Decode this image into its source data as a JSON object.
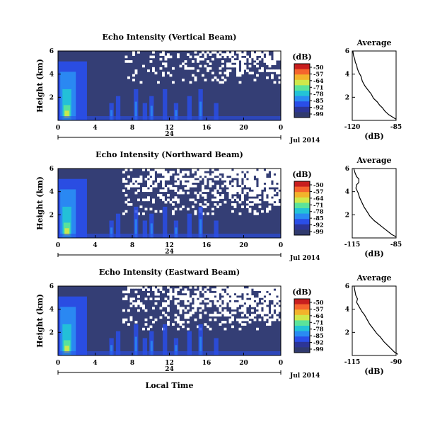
{
  "chart_data": [
    {
      "type": "heatmap",
      "title": "Echo Intensity (Vertical Beam)",
      "ylabel": "Height (km)",
      "ylim": [
        0,
        6
      ],
      "yticks": [
        "2",
        "4",
        "6"
      ],
      "xticks": [
        "0",
        "4",
        "8",
        "12",
        "16",
        "20",
        "0"
      ],
      "date_day": "24",
      "date_label": "Jul 2014",
      "colorbar": {
        "unit": "(dB)",
        "ticks": [
          "-50",
          "-57",
          "-64",
          "-71",
          "-78",
          "-85",
          "-92",
          "-99"
        ]
      },
      "average": {
        "title": "Average",
        "xlabel": "(dB)",
        "xticks": [
          "-120",
          "-85"
        ],
        "xlim": [
          -120,
          -85
        ],
        "yticks": [
          "2",
          "4",
          "6"
        ],
        "ylim": [
          0,
          6
        ],
        "profile": [
          [
            -85,
            0.1
          ],
          [
            -88,
            0.3
          ],
          [
            -91,
            0.5
          ],
          [
            -94,
            0.8
          ],
          [
            -96,
            1.1
          ],
          [
            -98,
            1.3
          ],
          [
            -100,
            1.6
          ],
          [
            -103,
            1.9
          ],
          [
            -105,
            2.3
          ],
          [
            -108,
            2.7
          ],
          [
            -110,
            3.0
          ],
          [
            -112,
            3.4
          ],
          [
            -113,
            3.8
          ],
          [
            -115,
            4.2
          ],
          [
            -116,
            4.5
          ],
          [
            -116.5,
            4.8
          ],
          [
            -117.5,
            5.0
          ],
          [
            -118,
            5.3
          ],
          [
            -119,
            5.6
          ],
          [
            -119.5,
            6.0
          ]
        ]
      }
    },
    {
      "type": "heatmap",
      "title": "Echo Intensity (Northward Beam)",
      "ylabel": "Height (km)",
      "ylim": [
        0,
        6
      ],
      "yticks": [
        "2",
        "4",
        "6"
      ],
      "xticks": [
        "0",
        "4",
        "8",
        "12",
        "16",
        "20",
        "0"
      ],
      "date_day": "24",
      "date_label": "Jul 2014",
      "colorbar": {
        "unit": "(dB)",
        "ticks": [
          "-50",
          "-57",
          "-64",
          "-71",
          "-78",
          "-85",
          "-92",
          "-99"
        ]
      },
      "average": {
        "title": "Average",
        "xlabel": "(dB)",
        "xticks": [
          "-115",
          "-85"
        ],
        "xlim": [
          -115,
          -85
        ],
        "yticks": [
          "2",
          "4",
          "6"
        ],
        "ylim": [
          0,
          6
        ],
        "profile": [
          [
            -85,
            0.1
          ],
          [
            -88,
            0.3
          ],
          [
            -91,
            0.6
          ],
          [
            -94,
            0.9
          ],
          [
            -97,
            1.2
          ],
          [
            -100,
            1.5
          ],
          [
            -103,
            1.9
          ],
          [
            -105,
            2.3
          ],
          [
            -107,
            2.7
          ],
          [
            -108.5,
            3.1
          ],
          [
            -110,
            3.5
          ],
          [
            -111,
            3.9
          ],
          [
            -112.5,
            4.3
          ],
          [
            -112,
            4.6
          ],
          [
            -110.5,
            4.8
          ],
          [
            -110.5,
            5.1
          ],
          [
            -112,
            5.3
          ],
          [
            -113,
            5.6
          ],
          [
            -114,
            6.0
          ]
        ]
      }
    },
    {
      "type": "heatmap",
      "title": "Echo Intensity (Eastward Beam)",
      "ylabel": "Height (km)",
      "ylim": [
        0,
        6
      ],
      "yticks": [
        "2",
        "4",
        "6"
      ],
      "xticks": [
        "0",
        "4",
        "8",
        "12",
        "16",
        "20",
        "0"
      ],
      "date_day": "24",
      "date_label": "Jul 2014",
      "xlabel": "Local Time",
      "colorbar": {
        "unit": "(dB)",
        "ticks": [
          "-50",
          "-57",
          "-64",
          "-71",
          "-78",
          "-85",
          "-92",
          "-99"
        ]
      },
      "average": {
        "title": "Average",
        "xlabel": "(dB)",
        "xticks": [
          "-115",
          "-90"
        ],
        "xlim": [
          -115,
          -90
        ],
        "yticks": [
          "2",
          "4",
          "6"
        ],
        "ylim": [
          0,
          6
        ],
        "profile": [
          [
            -89,
            0.1
          ],
          [
            -91,
            0.3
          ],
          [
            -93,
            0.6
          ],
          [
            -95,
            0.9
          ],
          [
            -97,
            1.2
          ],
          [
            -99,
            1.6
          ],
          [
            -101,
            1.9
          ],
          [
            -103,
            2.3
          ],
          [
            -105,
            2.7
          ],
          [
            -106.5,
            3.1
          ],
          [
            -108,
            3.5
          ],
          [
            -109.5,
            3.8
          ],
          [
            -111,
            4.2
          ],
          [
            -112.5,
            4.6
          ],
          [
            -112,
            4.9
          ],
          [
            -113,
            5.2
          ],
          [
            -113.5,
            5.6
          ],
          [
            -114,
            6.0
          ]
        ]
      }
    }
  ]
}
